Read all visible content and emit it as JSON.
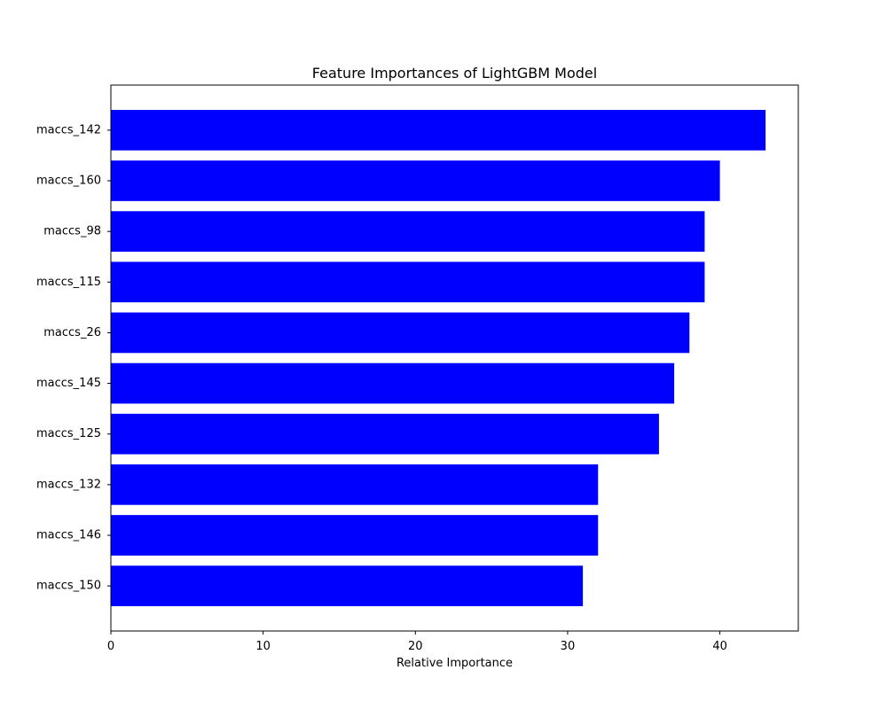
{
  "chart_data": {
    "type": "bar",
    "orientation": "horizontal",
    "title": "Feature Importances of LightGBM Model",
    "xlabel": "Relative Importance",
    "ylabel": "",
    "categories": [
      "maccs_150",
      "maccs_146",
      "maccs_132",
      "maccs_125",
      "maccs_145",
      "maccs_26",
      "maccs_115",
      "maccs_98",
      "maccs_160",
      "maccs_142"
    ],
    "values": [
      31,
      32,
      32,
      36,
      37,
      38,
      39,
      39,
      40,
      43
    ],
    "xlim": [
      0,
      45.15
    ],
    "xticks": [
      0,
      10,
      20,
      30,
      40
    ],
    "grid": false,
    "bar_color": "#0000ff"
  }
}
